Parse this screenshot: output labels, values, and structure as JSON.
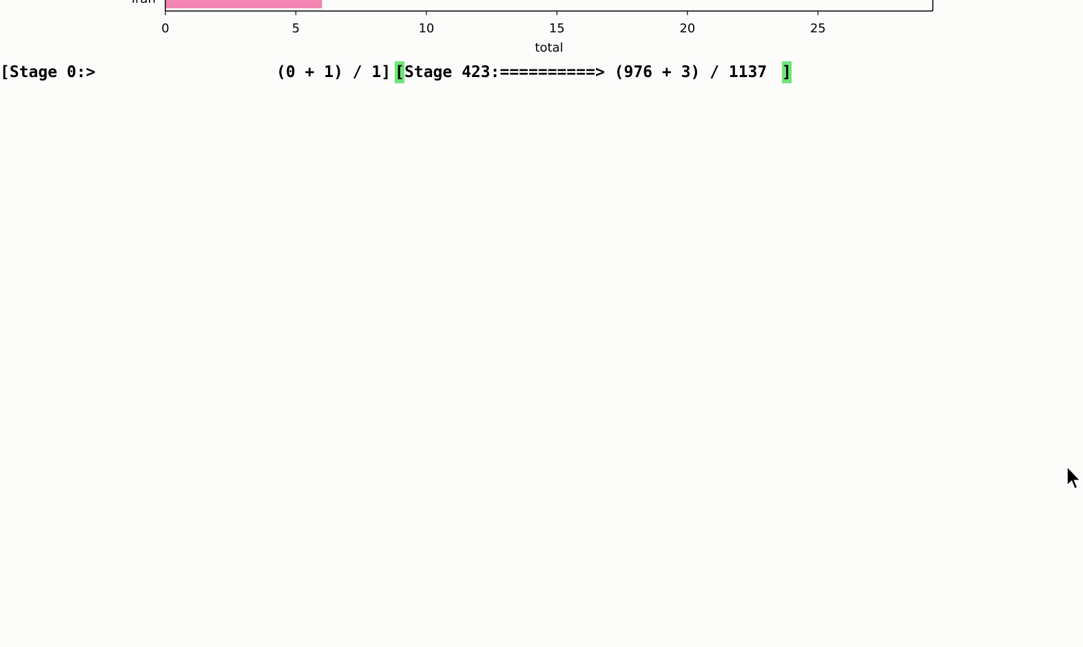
{
  "chart_data": {
    "type": "bar",
    "orientation": "horizontal",
    "categories": [
      "Iran"
    ],
    "values": [
      6
    ],
    "bar_color": "#f285b1",
    "xlabel": "total",
    "xlim": [
      0,
      29.4
    ],
    "xticks": [
      0,
      5,
      10,
      15,
      20,
      25
    ],
    "xtick_labels": [
      "0",
      "5",
      "10",
      "15",
      "20",
      "25"
    ]
  },
  "console": {
    "stage0_label": "[Stage 0:>",
    "stage0_progress": "(0 + 1) / 1]",
    "open_bracket": "[",
    "stage423_progress": "Stage 423:==========> (976 + 3) / 1137",
    "close_bracket": "]",
    "highlight_color": "#6ee47a"
  }
}
